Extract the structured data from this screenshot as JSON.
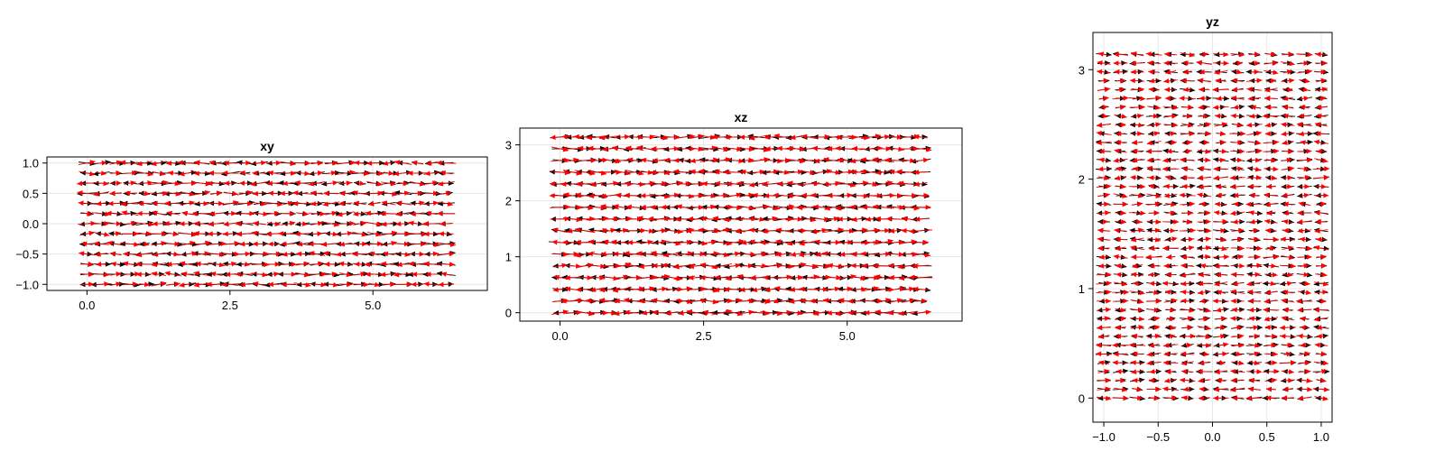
{
  "chart_data": [
    {
      "type": "quiver",
      "title": "xy",
      "xlabel": "",
      "ylabel": "",
      "xlim": [
        -0.7,
        7.0
      ],
      "ylim": [
        -1.1,
        1.1
      ],
      "xticks": [
        0.0,
        2.5,
        5.0
      ],
      "xtick_labels": [
        "0.0",
        "2.5",
        "5.0"
      ],
      "yticks": [
        -1.0,
        -0.5,
        0.0,
        0.5,
        1.0
      ],
      "ytick_labels": [
        "−1.0",
        "−0.5",
        "0.0",
        "0.5",
        "1.0"
      ],
      "grid": true,
      "field": {
        "x_range": [
          0.0,
          6.28
        ],
        "y_range": [
          -1.0,
          1.0
        ],
        "nx": 26,
        "ny": 13,
        "series": [
          {
            "color": "#000000",
            "arrow_length": 0.28
          },
          {
            "color": "#ff0000",
            "arrow_length": 0.28
          }
        ]
      }
    },
    {
      "type": "quiver",
      "title": "xz",
      "xlabel": "",
      "ylabel": "",
      "xlim": [
        -0.7,
        7.0
      ],
      "ylim": [
        -0.15,
        3.3
      ],
      "xticks": [
        0.0,
        2.5,
        5.0
      ],
      "xtick_labels": [
        "0.0",
        "2.5",
        "5.0"
      ],
      "yticks": [
        0,
        1,
        2,
        3
      ],
      "ytick_labels": [
        "0",
        "1",
        "2",
        "3"
      ],
      "grid": true,
      "field": {
        "x_range": [
          0.0,
          6.28
        ],
        "y_range": [
          0.0,
          3.14
        ],
        "nx": 30,
        "ny": 16,
        "series": [
          {
            "color": "#000000",
            "arrow_length": 0.32
          },
          {
            "color": "#ff0000",
            "arrow_length": 0.32
          }
        ]
      }
    },
    {
      "type": "quiver",
      "title": "yz",
      "xlabel": "",
      "ylabel": "",
      "xlim": [
        -1.1,
        1.1
      ],
      "ylim": [
        -0.22,
        3.34
      ],
      "xticks": [
        -1.0,
        -0.5,
        0.0,
        0.5,
        1.0
      ],
      "xtick_labels": [
        "−1.0",
        "−0.5",
        "0.0",
        "0.5",
        "1.0"
      ],
      "yticks": [
        0,
        1,
        2,
        3
      ],
      "ytick_labels": [
        "0",
        "1",
        "2",
        "3"
      ],
      "grid": true,
      "field": {
        "x_range": [
          -1.0,
          1.0
        ],
        "y_range": [
          0.0,
          3.14
        ],
        "nx": 14,
        "ny": 40,
        "series": [
          {
            "color": "#000000",
            "arrow_length": 0.12
          },
          {
            "color": "#ff0000",
            "arrow_length": 0.12
          }
        ]
      }
    }
  ]
}
